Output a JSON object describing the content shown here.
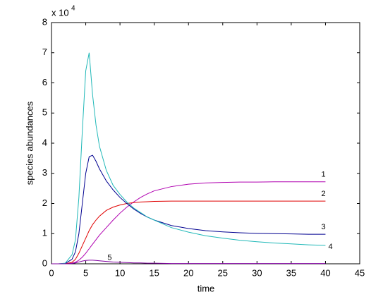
{
  "chart_data": {
    "type": "line",
    "xlabel": "time",
    "ylabel": "species abundances",
    "exponent": {
      "base": "x 10",
      "power": "4"
    },
    "x": [
      0,
      1,
      2,
      3,
      3.5,
      4,
      4.5,
      5,
      5.5,
      6,
      6.5,
      7,
      8,
      9,
      10,
      11,
      12,
      13,
      14,
      15,
      17.5,
      20,
      22.5,
      25,
      27.5,
      30,
      32.5,
      35,
      37.5,
      40
    ],
    "series": [
      {
        "name": "1",
        "color": "#b000b0",
        "values": [
          0,
          0,
          0,
          0.02,
          0.05,
          0.12,
          0.22,
          0.35,
          0.5,
          0.65,
          0.8,
          0.95,
          1.2,
          1.45,
          1.68,
          1.88,
          2.05,
          2.2,
          2.32,
          2.42,
          2.56,
          2.64,
          2.68,
          2.7,
          2.71,
          2.71,
          2.72,
          2.72,
          2.72,
          2.72
        ]
      },
      {
        "name": "2",
        "color": "#e00000",
        "values": [
          0,
          0,
          0,
          0.05,
          0.15,
          0.35,
          0.6,
          0.85,
          1.1,
          1.3,
          1.45,
          1.58,
          1.77,
          1.88,
          1.95,
          2.0,
          2.03,
          2.05,
          2.06,
          2.07,
          2.08,
          2.08,
          2.08,
          2.08,
          2.08,
          2.08,
          2.08,
          2.08,
          2.08,
          2.08
        ]
      },
      {
        "name": "3",
        "color": "#000090",
        "values": [
          0,
          0,
          0.01,
          0.15,
          0.4,
          1.0,
          2.0,
          3.0,
          3.55,
          3.6,
          3.4,
          3.15,
          2.75,
          2.45,
          2.2,
          2.0,
          1.82,
          1.67,
          1.55,
          1.45,
          1.27,
          1.17,
          1.1,
          1.06,
          1.03,
          1.01,
          1.0,
          0.99,
          0.98,
          0.98
        ]
      },
      {
        "name": "4",
        "color": "#20b8b8",
        "values": [
          0,
          0,
          0.02,
          0.3,
          0.8,
          2.2,
          4.4,
          6.4,
          7.0,
          5.6,
          4.6,
          3.9,
          3.1,
          2.6,
          2.3,
          2.05,
          1.85,
          1.7,
          1.55,
          1.45,
          1.2,
          1.05,
          0.93,
          0.85,
          0.78,
          0.73,
          0.69,
          0.66,
          0.63,
          0.61
        ]
      },
      {
        "name": "5",
        "color": "#8000a0",
        "values": [
          0,
          0,
          0,
          0.01,
          0.03,
          0.06,
          0.09,
          0.11,
          0.12,
          0.12,
          0.11,
          0.1,
          0.08,
          0.06,
          0.05,
          0.04,
          0.03,
          0.03,
          0.02,
          0.02,
          0.01,
          0.01,
          0.01,
          0.01,
          0.01,
          0.01,
          0.01,
          0.01,
          0.01,
          0.01
        ]
      }
    ],
    "xlim": [
      0,
      45
    ],
    "xticks": [
      0,
      5,
      10,
      15,
      20,
      25,
      30,
      35,
      40,
      45
    ],
    "ylim": [
      0,
      8
    ],
    "yticks": [
      0,
      1,
      2,
      3,
      4,
      5,
      6,
      7,
      8
    ]
  }
}
